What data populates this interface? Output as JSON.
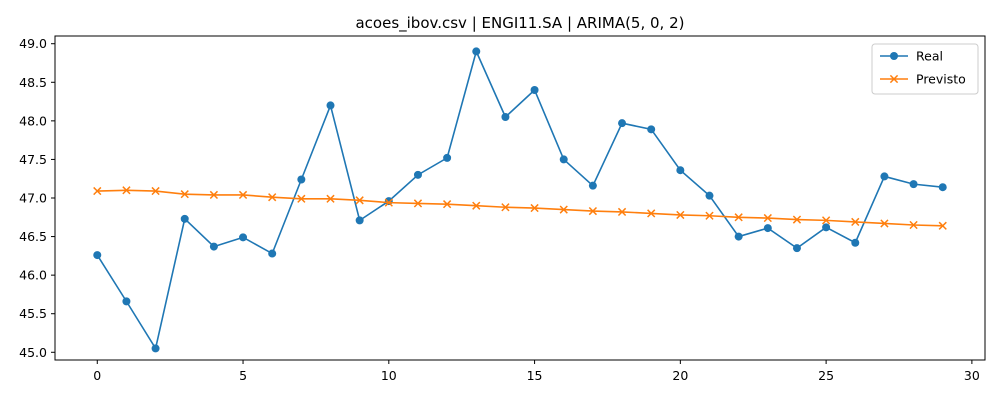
{
  "chart_data": {
    "type": "line",
    "title": "acoes_ibov.csv | ENGI11.SA | ARIMA(5, 0, 2)",
    "xlabel": "",
    "ylabel": "",
    "xlim": [
      -1.45,
      30.45
    ],
    "ylim": [
      44.9,
      49.1
    ],
    "x_ticks": [
      0,
      5,
      10,
      15,
      20,
      25,
      30
    ],
    "y_ticks": [
      45.0,
      45.5,
      46.0,
      46.5,
      47.0,
      47.5,
      48.0,
      48.5,
      49.0
    ],
    "legend_position": "top-right",
    "grid": false,
    "x": [
      0,
      1,
      2,
      3,
      4,
      5,
      6,
      7,
      8,
      9,
      10,
      11,
      12,
      13,
      14,
      15,
      16,
      17,
      18,
      19,
      20,
      21,
      22,
      23,
      24,
      25,
      26,
      27,
      28,
      29
    ],
    "series": [
      {
        "name": "Real",
        "color": "#1f77b4",
        "marker": "circle",
        "values": [
          46.26,
          45.66,
          45.05,
          46.73,
          46.37,
          46.49,
          46.28,
          47.24,
          48.2,
          46.71,
          46.96,
          47.3,
          47.52,
          48.9,
          48.05,
          48.4,
          47.5,
          47.16,
          47.97,
          47.89,
          47.36,
          47.03,
          46.5,
          46.61,
          46.35,
          46.62,
          46.42,
          47.28,
          47.18,
          47.14
        ]
      },
      {
        "name": "Previsto",
        "color": "#ff7f0e",
        "marker": "x",
        "values": [
          47.09,
          47.1,
          47.09,
          47.05,
          47.04,
          47.04,
          47.01,
          46.99,
          46.99,
          46.97,
          46.94,
          46.93,
          46.92,
          46.9,
          46.88,
          46.87,
          46.85,
          46.83,
          46.82,
          46.8,
          46.78,
          46.77,
          46.75,
          46.74,
          46.72,
          46.71,
          46.69,
          46.67,
          46.65,
          46.64
        ]
      }
    ]
  }
}
